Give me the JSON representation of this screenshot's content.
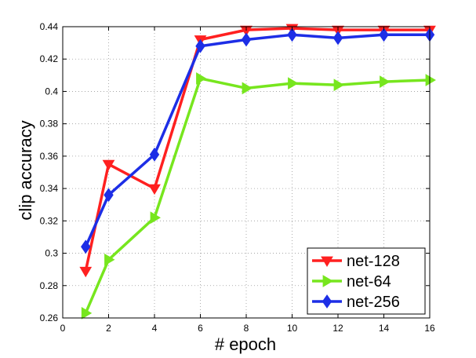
{
  "chart_data": {
    "type": "line",
    "title": "",
    "xlabel": "# epoch",
    "ylabel": "clip accuracy",
    "xlim": [
      0,
      16
    ],
    "ylim": [
      0.26,
      0.44
    ],
    "xticks": [
      0,
      2,
      4,
      6,
      8,
      10,
      12,
      14,
      16
    ],
    "yticks": [
      0.26,
      0.28,
      0.3,
      0.32,
      0.34,
      0.36,
      0.38,
      0.4,
      0.42,
      0.44
    ],
    "xtick_labels": [
      "0",
      "2",
      "4",
      "6",
      "8",
      "10",
      "12",
      "14",
      "16"
    ],
    "ytick_labels": [
      "0.26",
      "0.28",
      "0.3",
      "0.32",
      "0.34",
      "0.36",
      "0.38",
      "0.4",
      "0.42",
      "0.44"
    ],
    "grid": true,
    "legend_position": "bottom-right",
    "x": [
      1,
      2,
      4,
      6,
      8,
      10,
      12,
      14,
      16
    ],
    "series": [
      {
        "name": "net-128",
        "color": "#ff2020",
        "marker": "triangle-down",
        "values": [
          0.289,
          0.355,
          0.34,
          0.432,
          0.438,
          0.439,
          0.438,
          0.438,
          0.438
        ]
      },
      {
        "name": "net-64",
        "color": "#77e61e",
        "marker": "triangle-right",
        "values": [
          0.263,
          0.296,
          0.322,
          0.408,
          0.402,
          0.405,
          0.404,
          0.406,
          0.407
        ]
      },
      {
        "name": "net-256",
        "color": "#1d2ee6",
        "marker": "diamond",
        "values": [
          0.304,
          0.336,
          0.361,
          0.428,
          0.432,
          0.435,
          0.433,
          0.435,
          0.435
        ]
      }
    ]
  }
}
